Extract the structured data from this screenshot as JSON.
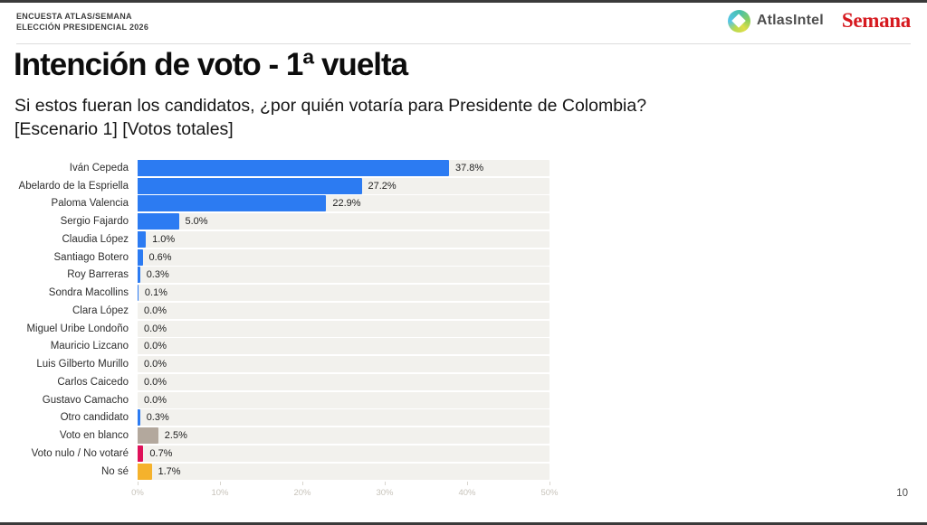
{
  "page": {
    "header": {
      "kicker_line1": "ENCUESTA ATLAS/SEMANA",
      "kicker_line2": "ELECCIÓN PRESIDENCIAL 2026",
      "logo_atlasintel": "AtlasIntel",
      "logo_semana": "Semana"
    },
    "title": "Intención de voto - 1ª vuelta",
    "subtitle_line1": "Si estos fueran los candidatos, ¿por quién votaría para Presidente de Colombia?",
    "subtitle_line2": "[Escenario 1] [Votos totales]",
    "page_number": "10"
  },
  "colors": {
    "bar_blue": "#2c7bf2",
    "bar_blank": "#b3a89d",
    "bar_null": "#df1159",
    "bar_dontknow": "#f5b22c",
    "track": "#f2f1ed",
    "semana_red": "#d6191f"
  },
  "chart_data": {
    "type": "bar",
    "orientation": "horizontal",
    "title": "Intención de voto - 1ª vuelta",
    "xlabel": "",
    "ylabel": "",
    "xlim": [
      0,
      50
    ],
    "grid": false,
    "x_ticks": [
      "0%",
      "10%",
      "20%",
      "30%",
      "40%",
      "50%"
    ],
    "categories": [
      "Iván Cepeda",
      "Abelardo de la Espriella",
      "Paloma Valencia",
      "Sergio Fajardo",
      "Claudia López",
      "Santiago Botero",
      "Roy Barreras",
      "Sondra Macollins",
      "Clara López",
      "Miguel Uribe Londoño",
      "Mauricio Lizcano",
      "Luis Gilberto Murillo",
      "Carlos Caicedo",
      "Gustavo Camacho",
      "Otro candidato",
      "Voto en blanco",
      "Voto nulo / No votaré",
      "No sé"
    ],
    "values": [
      37.8,
      27.2,
      22.9,
      5.0,
      1.0,
      0.6,
      0.3,
      0.1,
      0.0,
      0.0,
      0.0,
      0.0,
      0.0,
      0.0,
      0.3,
      2.5,
      0.7,
      1.7
    ],
    "value_labels": [
      "37.8%",
      "27.2%",
      "22.9%",
      "5.0%",
      "1.0%",
      "0.6%",
      "0.3%",
      "0.1%",
      "0.0%",
      "0.0%",
      "0.0%",
      "0.0%",
      "0.0%",
      "0.0%",
      "0.3%",
      "2.5%",
      "0.7%",
      "1.7%"
    ],
    "bar_colors": [
      "#2c7bf2",
      "#2c7bf2",
      "#2c7bf2",
      "#2c7bf2",
      "#2c7bf2",
      "#2c7bf2",
      "#2c7bf2",
      "#2c7bf2",
      "#2c7bf2",
      "#2c7bf2",
      "#2c7bf2",
      "#2c7bf2",
      "#2c7bf2",
      "#2c7bf2",
      "#2c7bf2",
      "#b3a89d",
      "#df1159",
      "#f5b22c"
    ]
  }
}
